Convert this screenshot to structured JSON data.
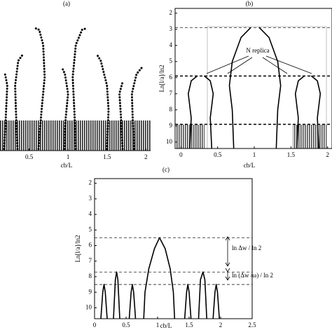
{
  "chart_data": [
    {
      "type": "line",
      "title": "(a)",
      "x_label": "cb/L",
      "line_style": "dots",
      "xlim": [
        0.126,
        2.06
      ],
      "ylim": [
        10.5,
        1.7
      ],
      "xticks": [
        0.5,
        1,
        1.5,
        2
      ],
      "series": [
        {
          "color": "#000000",
          "x": [
            0.62,
            0.66,
            0.7,
            0.68,
            0.63,
            0.58
          ],
          "values": [
            10.4,
            8,
            6,
            4,
            3.1,
            3.0
          ]
        },
        {
          "color": "#000000",
          "x": [
            1.1,
            1.08,
            1.06,
            1.1,
            1.18,
            1.24
          ],
          "values": [
            10.4,
            8,
            6,
            4,
            3.1,
            3.0
          ]
        },
        {
          "color": "#000000",
          "x": [
            0.35,
            0.33,
            0.32,
            0.36,
            0.42
          ],
          "values": [
            10.4,
            8,
            6.5,
            5,
            4.6
          ]
        },
        {
          "color": "#000000",
          "x": [
            1.5,
            1.52,
            1.5,
            1.42,
            1.37
          ],
          "values": [
            10.4,
            8,
            6.5,
            5,
            4.6
          ]
        },
        {
          "color": "#000000",
          "x": [
            0.95,
            0.97,
            1.0,
            0.96,
            0.92
          ],
          "values": [
            10.4,
            8.5,
            7,
            5.8,
            5.4
          ]
        },
        {
          "color": "#000000",
          "x": [
            1.85,
            1.83,
            1.82,
            1.88,
            1.95
          ],
          "values": [
            10.4,
            8.5,
            7,
            5.8,
            5.4
          ]
        },
        {
          "color": "#000000",
          "x": [
            0.18,
            0.2,
            0.22,
            0.19
          ],
          "values": [
            10.4,
            8.5,
            6.5,
            5.8
          ]
        },
        {
          "color": "#000000",
          "x": [
            1.7,
            1.68,
            1.66,
            1.7
          ],
          "values": [
            10.4,
            8.5,
            7,
            6.3
          ]
        }
      ]
    },
    {
      "type": "line",
      "title": "(b)",
      "x_label": "cb/L",
      "y_label": "Ln[l/a]/ln2",
      "line_style": "solid",
      "annotation": "N replica",
      "xlim": [
        -0.08,
        2.06
      ],
      "ylim": [
        10.4,
        1.7
      ],
      "xticks": [
        0,
        0.5,
        1,
        1.5,
        2
      ],
      "yticks": [
        2,
        3,
        4,
        5,
        6,
        7,
        8,
        9,
        10
      ],
      "reference_lines": [
        2.9,
        5.9,
        8.9
      ],
      "series": [
        {
          "color": "#000000",
          "x": [
            0.72,
            0.7,
            0.66,
            0.7,
            0.82,
            0.95
          ],
          "values": [
            10.4,
            8,
            6.5,
            5,
            3.5,
            2.9
          ]
        },
        {
          "color": "#000000",
          "x": [
            1.3,
            1.32,
            1.36,
            1.32,
            1.2,
            1.07
          ],
          "values": [
            10.4,
            8,
            6.5,
            5,
            3.5,
            2.9
          ]
        },
        {
          "color": "#000000",
          "x": [
            0.12,
            0.14,
            0.1,
            0.14,
            0.22
          ],
          "values": [
            10.4,
            8.5,
            7,
            6.2,
            5.9
          ]
        },
        {
          "color": "#000000",
          "x": [
            0.42,
            0.4,
            0.44,
            0.4,
            0.32
          ],
          "values": [
            10.4,
            8.5,
            7,
            6.2,
            5.9
          ]
        },
        {
          "color": "#000000",
          "x": [
            1.58,
            1.6,
            1.56,
            1.6,
            1.68
          ],
          "values": [
            10.4,
            8.5,
            7,
            6.2,
            5.9
          ]
        },
        {
          "color": "#000000",
          "x": [
            1.88,
            1.86,
            1.9,
            1.86,
            1.78
          ],
          "values": [
            10.4,
            8.5,
            7,
            6.2,
            5.9
          ]
        }
      ]
    },
    {
      "type": "line",
      "title": "(c)",
      "x_label": "cb/L",
      "y_label": "Ln[l/a]/ln2",
      "line_style": "solid",
      "annotations": [
        "ln Δw  / ln 2",
        "ln (Δw /ω) / ln 2"
      ],
      "xlim": [
        0,
        2.5
      ],
      "ylim": [
        10.7,
        1.7
      ],
      "xticks": [
        0,
        0.5,
        1,
        1.5,
        2,
        2.5
      ],
      "yticks": [
        2,
        3,
        4,
        5,
        6,
        7,
        8,
        9,
        10
      ],
      "reference_lines": [
        5.5,
        7.7,
        8.5
      ],
      "series": [
        {
          "color": "#000000",
          "x": [
            0.1,
            0.13,
            0.15,
            0.17,
            0.2
          ],
          "values": [
            10.7,
            9,
            8.5,
            9,
            10.7
          ]
        },
        {
          "color": "#000000",
          "x": [
            0.3,
            0.33,
            0.35,
            0.37,
            0.4
          ],
          "values": [
            10.7,
            8.2,
            7.7,
            8.2,
            10.7
          ]
        },
        {
          "color": "#000000",
          "x": [
            0.55,
            0.58,
            0.6,
            0.62,
            0.65
          ],
          "values": [
            10.7,
            9,
            8.5,
            9,
            10.7
          ]
        },
        {
          "color": "#000000",
          "x": [
            0.78,
            0.8,
            0.86,
            0.95,
            1.03,
            1.12,
            1.2,
            1.25,
            1.27
          ],
          "values": [
            10.7,
            9,
            7.5,
            6.2,
            5.5,
            6.2,
            7.5,
            9,
            10.7
          ]
        },
        {
          "color": "#000000",
          "x": [
            1.43,
            1.46,
            1.48,
            1.5,
            1.53
          ],
          "values": [
            10.7,
            9,
            8.5,
            9,
            10.7
          ]
        },
        {
          "color": "#000000",
          "x": [
            1.65,
            1.68,
            1.72,
            1.75,
            1.78
          ],
          "values": [
            10.7,
            8.2,
            7.7,
            8.2,
            10.7
          ]
        },
        {
          "color": "#000000",
          "x": [
            1.88,
            1.91,
            1.93,
            1.95,
            1.98
          ],
          "values": [
            10.7,
            9,
            8.5,
            9,
            10.7
          ]
        }
      ]
    }
  ]
}
